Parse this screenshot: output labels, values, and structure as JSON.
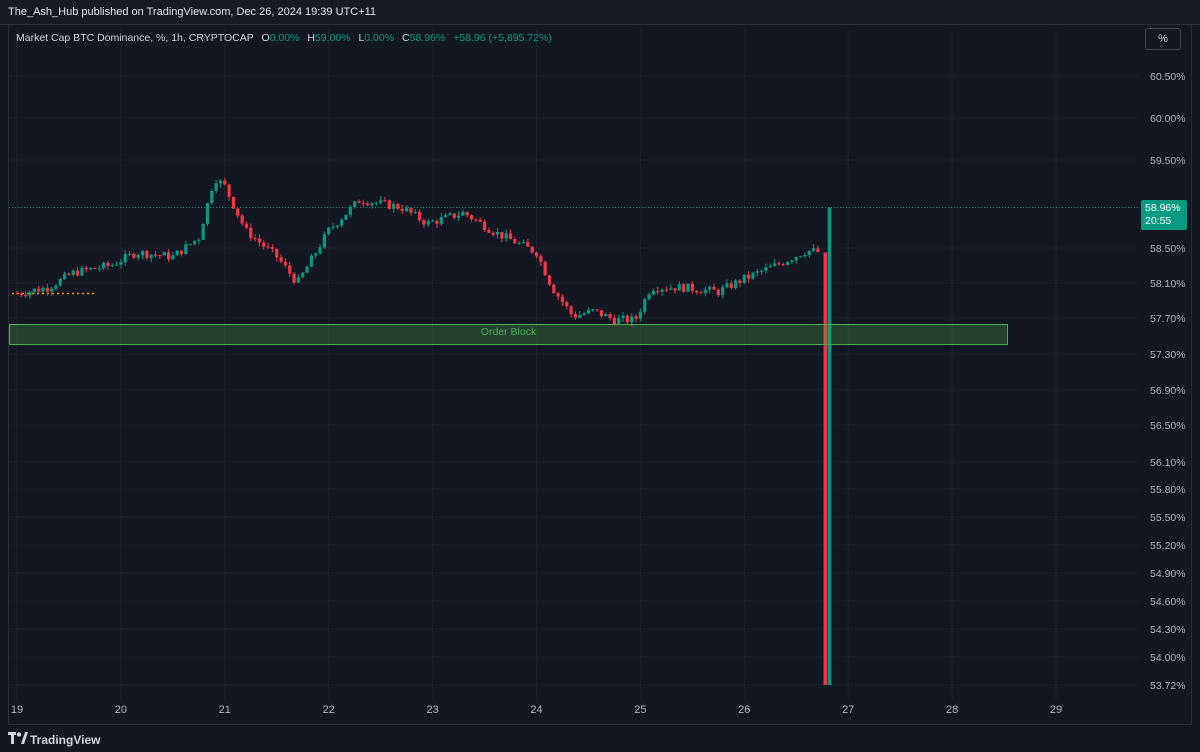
{
  "header": {
    "published": "The_Ash_Hub published on TradingView.com, Dec 26, 2024 19:39 UTC+11"
  },
  "legend": {
    "symbol": "Market Cap BTC Dominance, %, 1h, CRYPTOCAP",
    "o_label": "O",
    "o_value": "0.00%",
    "h_label": "H",
    "h_value": "59.00%",
    "l_label": "L",
    "l_value": "0.00%",
    "c_label": "C",
    "c_value": "58.96%",
    "change": "+58.96 (+5,895.72%)"
  },
  "scale_button": "%",
  "price_badge": {
    "price": "58.96%",
    "countdown": "20:55"
  },
  "annotation": {
    "label": "Order Block",
    "top": 57.63,
    "bottom": 57.4
  },
  "footer": {
    "brand": "TradingView"
  },
  "colors": {
    "up": "#089981",
    "down": "#f23645",
    "background": "#131722",
    "grid": "#1e222d",
    "zone": "#4caf50",
    "dotted_level": "#ff9800"
  },
  "chart_data": {
    "type": "candlestick",
    "title": "Market Cap BTC Dominance, %, 1h, CRYPTOCAP",
    "y_ticks": [
      "60.50%",
      "60.00%",
      "59.50%",
      "58.50%",
      "58.10%",
      "57.70%",
      "57.30%",
      "56.90%",
      "56.50%",
      "56.10%",
      "55.80%",
      "55.50%",
      "55.20%",
      "54.90%",
      "54.60%",
      "54.30%",
      "54.00%",
      "53.72%"
    ],
    "x_ticks": [
      "19",
      "20",
      "21",
      "22",
      "23",
      "24",
      "25",
      "26",
      "27",
      "28",
      "29"
    ],
    "last_price": 58.96,
    "close_path": [
      [
        "19",
        57.98
      ],
      [
        "19.3",
        58.05
      ],
      [
        "19.55",
        58.22
      ],
      [
        "19.9",
        58.3
      ],
      [
        "20.15",
        58.45
      ],
      [
        "20.5",
        58.4
      ],
      [
        "20.75",
        58.62
      ],
      [
        "20.9",
        59.3
      ],
      [
        "21.0",
        59.2
      ],
      [
        "21.2",
        58.7
      ],
      [
        "21.5",
        58.4
      ],
      [
        "21.7",
        58.1
      ],
      [
        "22.0",
        58.7
      ],
      [
        "22.3",
        59.05
      ],
      [
        "22.7",
        58.96
      ],
      [
        "22.95",
        58.78
      ],
      [
        "23.3",
        58.9
      ],
      [
        "23.6",
        58.68
      ],
      [
        "24.0",
        58.45
      ],
      [
        "24.15",
        58.05
      ],
      [
        "24.35",
        57.72
      ],
      [
        "24.55",
        57.78
      ],
      [
        "24.75",
        57.68
      ],
      [
        "24.95",
        57.68
      ],
      [
        "25.1",
        58.05
      ],
      [
        "25.4",
        58.05
      ],
      [
        "25.75",
        58.0
      ],
      [
        "26.0",
        58.15
      ],
      [
        "26.3",
        58.3
      ],
      [
        "26.6",
        58.47
      ],
      [
        "26.75",
        58.45
      ]
    ],
    "final_bars": [
      {
        "x": "26.78",
        "open": 58.45,
        "high": 58.45,
        "low": 53.72,
        "close": 53.72,
        "dir": "down"
      },
      {
        "x": "26.82",
        "open": 53.72,
        "high": 58.96,
        "low": 53.72,
        "close": 58.96,
        "dir": "up"
      }
    ]
  }
}
